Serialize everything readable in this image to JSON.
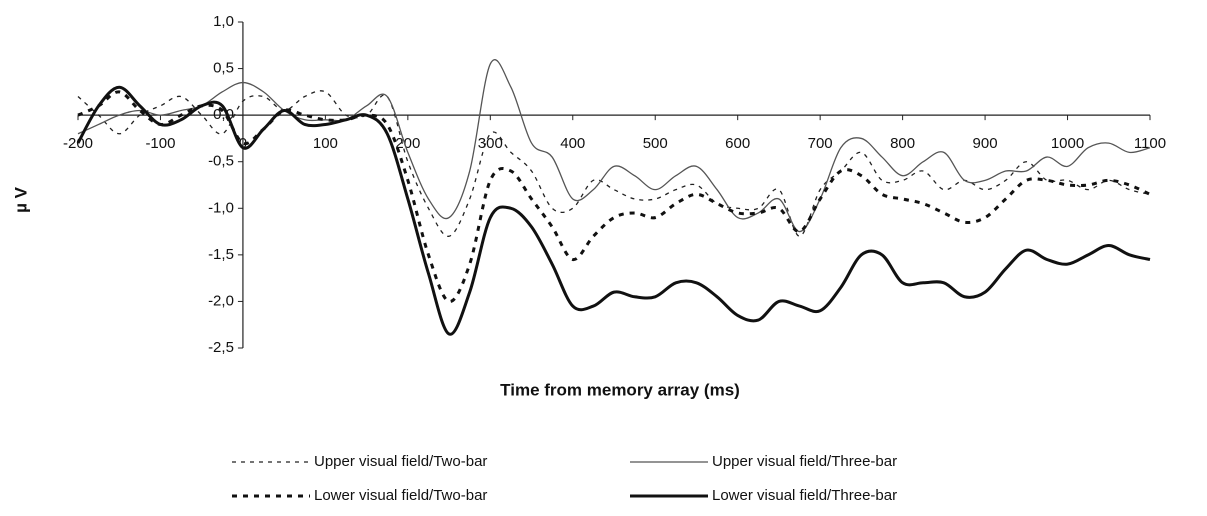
{
  "chart_data": {
    "type": "line",
    "x_label": "Time from memory array (ms)",
    "y_label": "µ V",
    "xlim": [
      -200,
      1100
    ],
    "ylim": [
      -2.5,
      1.0
    ],
    "xticks": [
      -200,
      -100,
      0,
      100,
      200,
      300,
      400,
      500,
      600,
      700,
      800,
      900,
      1000,
      1100
    ],
    "yticks": [
      {
        "value": -2.5,
        "label": "-2,5"
      },
      {
        "value": -2.0,
        "label": "-2,0"
      },
      {
        "value": -1.5,
        "label": "-1,5"
      },
      {
        "value": -1.0,
        "label": "-1,0"
      },
      {
        "value": -0.5,
        "label": "-0,5"
      },
      {
        "value": 0.0,
        "label": "0,0"
      },
      {
        "value": 0.5,
        "label": "0,5"
      },
      {
        "value": 1.0,
        "label": "1,0"
      }
    ],
    "x": [
      -200,
      -175,
      -150,
      -125,
      -100,
      -75,
      -50,
      -25,
      0,
      25,
      50,
      75,
      100,
      125,
      150,
      175,
      200,
      225,
      250,
      275,
      300,
      325,
      350,
      375,
      400,
      425,
      450,
      475,
      500,
      525,
      550,
      575,
      600,
      625,
      650,
      675,
      700,
      725,
      750,
      775,
      800,
      825,
      850,
      875,
      900,
      925,
      950,
      975,
      1000,
      1025,
      1050,
      1075,
      1100
    ],
    "series": [
      {
        "name": "Upper visual field/Two-bar",
        "color": "#222222",
        "style": "dashed",
        "weight": "thin",
        "values": [
          0.2,
          0.0,
          -0.2,
          0.0,
          0.1,
          0.2,
          0.0,
          -0.2,
          0.15,
          0.2,
          0.05,
          0.2,
          0.25,
          0.0,
          0.0,
          0.2,
          -0.5,
          -1.0,
          -1.3,
          -0.9,
          -0.2,
          -0.4,
          -0.6,
          -1.0,
          -1.0,
          -0.7,
          -0.8,
          -0.9,
          -0.9,
          -0.8,
          -0.75,
          -0.95,
          -1.0,
          -1.0,
          -0.8,
          -1.3,
          -0.8,
          -0.6,
          -0.4,
          -0.7,
          -0.7,
          -0.6,
          -0.8,
          -0.7,
          -0.8,
          -0.7,
          -0.5,
          -0.7,
          -0.7,
          -0.8,
          -0.7,
          -0.8,
          -0.85
        ]
      },
      {
        "name": "Upper visual field/Three-bar",
        "color": "#555555",
        "style": "solid",
        "weight": "thin",
        "values": [
          -0.2,
          -0.1,
          0.0,
          0.05,
          0.0,
          0.05,
          0.1,
          0.25,
          0.35,
          0.25,
          0.05,
          -0.05,
          -0.05,
          -0.05,
          0.1,
          0.2,
          -0.4,
          -0.9,
          -1.1,
          -0.6,
          0.55,
          0.3,
          -0.3,
          -0.45,
          -0.9,
          -0.8,
          -0.55,
          -0.65,
          -0.8,
          -0.65,
          -0.55,
          -0.8,
          -1.1,
          -1.05,
          -0.9,
          -1.25,
          -0.9,
          -0.35,
          -0.25,
          -0.45,
          -0.65,
          -0.5,
          -0.4,
          -0.7,
          -0.7,
          -0.6,
          -0.6,
          -0.45,
          -0.55,
          -0.35,
          -0.3,
          -0.4,
          -0.35
        ]
      },
      {
        "name": "Lower visual field/Two-bar",
        "color": "#111111",
        "style": "dashed",
        "weight": "thick",
        "values": [
          0.0,
          0.1,
          0.25,
          0.05,
          -0.1,
          0.0,
          0.1,
          0.05,
          -0.3,
          -0.15,
          0.05,
          0.0,
          -0.05,
          -0.05,
          0.0,
          -0.1,
          -0.7,
          -1.5,
          -2.0,
          -1.6,
          -0.7,
          -0.6,
          -0.9,
          -1.2,
          -1.55,
          -1.3,
          -1.1,
          -1.05,
          -1.1,
          -0.95,
          -0.85,
          -0.95,
          -1.05,
          -1.05,
          -1.0,
          -1.25,
          -0.9,
          -0.6,
          -0.65,
          -0.85,
          -0.9,
          -0.95,
          -1.05,
          -1.15,
          -1.1,
          -0.9,
          -0.7,
          -0.7,
          -0.75,
          -0.75,
          -0.7,
          -0.75,
          -0.85
        ]
      },
      {
        "name": "Lower visual field/Three-bar",
        "color": "#111111",
        "style": "solid",
        "weight": "thick",
        "values": [
          -0.3,
          0.1,
          0.3,
          0.1,
          -0.1,
          -0.05,
          0.1,
          0.1,
          -0.35,
          -0.15,
          0.05,
          -0.1,
          -0.1,
          -0.05,
          0.0,
          -0.2,
          -0.9,
          -1.7,
          -2.35,
          -1.9,
          -1.1,
          -1.0,
          -1.2,
          -1.6,
          -2.05,
          -2.05,
          -1.9,
          -1.95,
          -1.95,
          -1.8,
          -1.8,
          -1.95,
          -2.15,
          -2.2,
          -2.0,
          -2.05,
          -2.1,
          -1.85,
          -1.5,
          -1.5,
          -1.8,
          -1.8,
          -1.8,
          -1.95,
          -1.9,
          -1.65,
          -1.45,
          -1.55,
          -1.6,
          -1.5,
          -1.4,
          -1.5,
          -1.55
        ]
      }
    ]
  }
}
